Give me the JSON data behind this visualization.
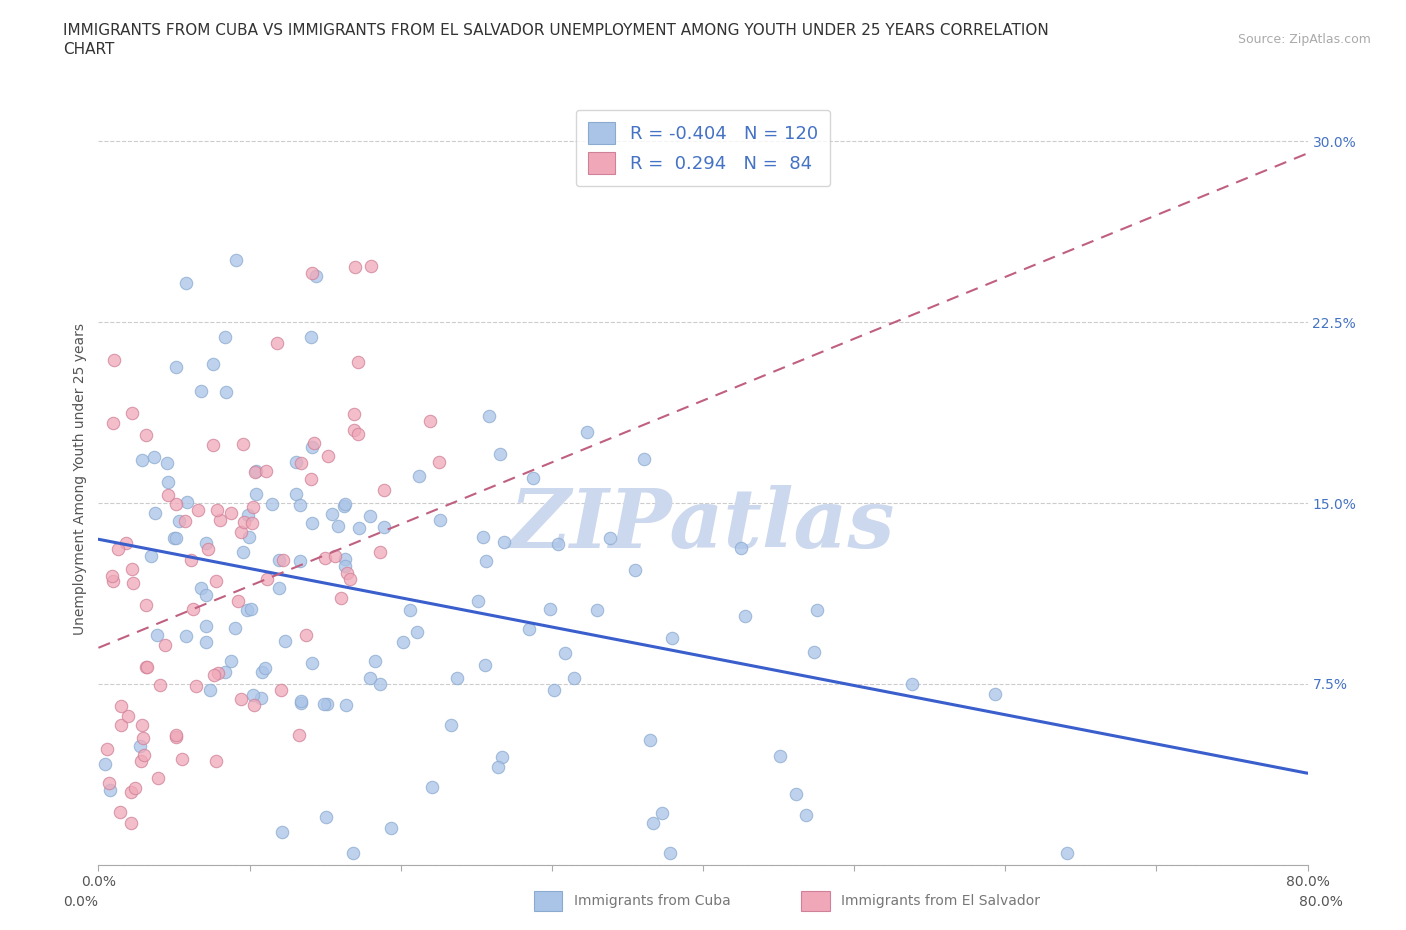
{
  "title": "IMMIGRANTS FROM CUBA VS IMMIGRANTS FROM EL SALVADOR UNEMPLOYMENT AMONG YOUTH UNDER 25 YEARS CORRELATION\nCHART",
  "source": "Source: ZipAtlas.com",
  "ylabel": "Unemployment Among Youth under 25 years",
  "xlim": [
    0.0,
    0.8
  ],
  "ylim": [
    0.0,
    0.32
  ],
  "xticks": [
    0.0,
    0.1,
    0.2,
    0.3,
    0.4,
    0.5,
    0.6,
    0.7,
    0.8
  ],
  "xticklabels": [
    "0.0%",
    "",
    "",
    "",
    "",
    "",
    "",
    "",
    "80.0%"
  ],
  "yticks": [
    0.0,
    0.075,
    0.15,
    0.225,
    0.3
  ],
  "yticklabels": [
    "",
    "7.5%",
    "15.0%",
    "22.5%",
    "30.0%"
  ],
  "grid_color": "#cccccc",
  "watermark": "ZIPatlas",
  "cuba_color": "#aac4e8",
  "el_salvador_color": "#f0a8b8",
  "cuba_line_color": "#3a5fcd",
  "el_salvador_line_color": "#c06080",
  "cuba_R": -0.404,
  "cuba_N": 120,
  "el_salvador_R": 0.294,
  "el_salvador_N": 84,
  "cuba_line_x0": 0.0,
  "cuba_line_y0": 0.135,
  "cuba_line_x1": 0.8,
  "cuba_line_y1": 0.038,
  "elsal_line_x0": 0.0,
  "elsal_line_y0": 0.09,
  "elsal_line_x1": 0.8,
  "elsal_line_y1": 0.295,
  "background_color": "#ffffff",
  "title_fontsize": 11,
  "axis_label_fontsize": 10,
  "tick_fontsize": 10,
  "legend_fontsize": 13,
  "watermark_color": "#ccd8ee",
  "watermark_fontsize": 60
}
